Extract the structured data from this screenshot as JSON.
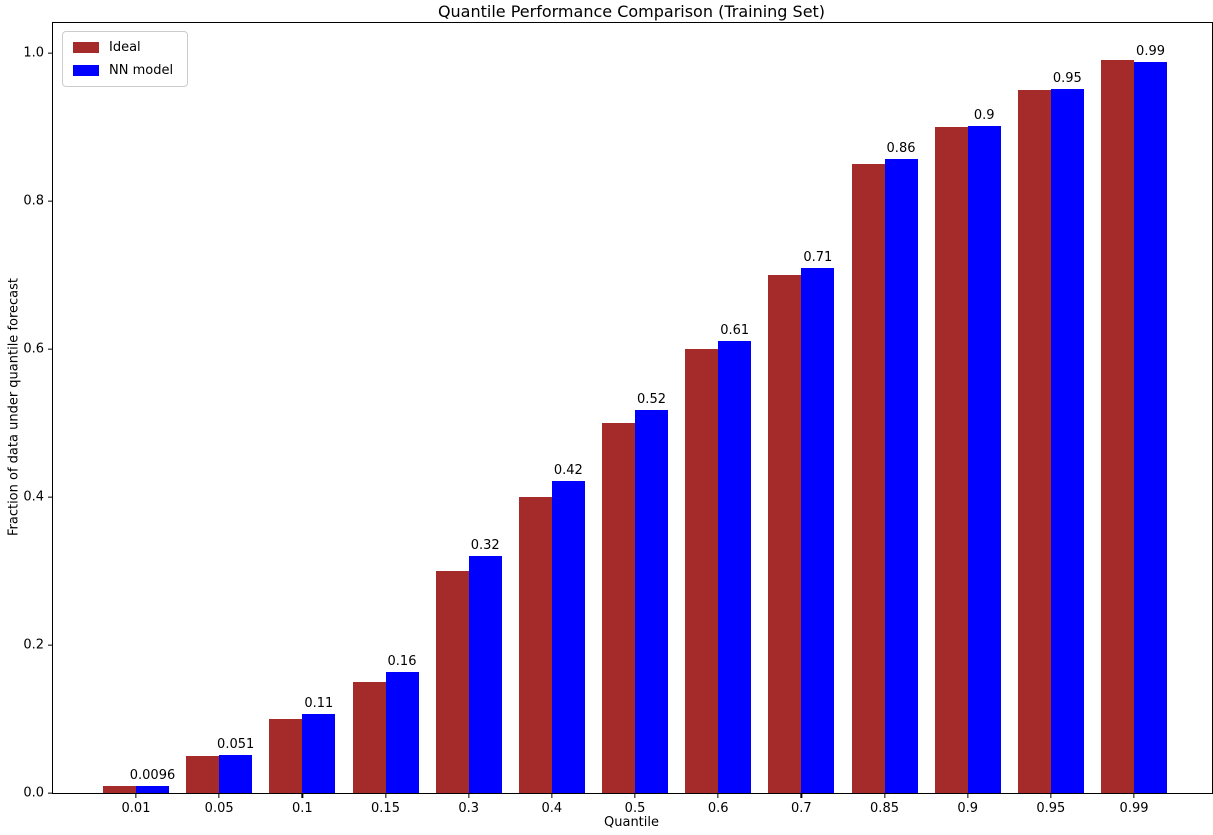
{
  "chart_data": {
    "type": "bar",
    "title": "Quantile Performance Comparison (Training Set)",
    "xlabel": "Quantile",
    "ylabel": "Fraction of data under quantile forecast",
    "categories": [
      "0.01",
      "0.05",
      "0.1",
      "0.15",
      "0.3",
      "0.4",
      "0.5",
      "0.6",
      "0.7",
      "0.85",
      "0.9",
      "0.95",
      "0.99"
    ],
    "series": [
      {
        "name": "Ideal",
        "color": "#a52a2a",
        "values": [
          0.01,
          0.05,
          0.1,
          0.15,
          0.3,
          0.4,
          0.5,
          0.6,
          0.7,
          0.85,
          0.9,
          0.95,
          0.99
        ]
      },
      {
        "name": "NN model",
        "color": "#0000ff",
        "values": [
          0.0096,
          0.051,
          0.107,
          0.163,
          0.32,
          0.422,
          0.517,
          0.611,
          0.71,
          0.857,
          0.902,
          0.951,
          0.988
        ],
        "labels": [
          "0.0096",
          "0.051",
          "0.11",
          "0.16",
          "0.32",
          "0.42",
          "0.52",
          "0.61",
          "0.71",
          "0.86",
          "0.9",
          "0.95",
          "0.99"
        ]
      }
    ],
    "yticks": [
      "0.0",
      "0.2",
      "0.4",
      "0.6",
      "0.8",
      "1.0"
    ],
    "ylim": [
      0,
      1.0405
    ],
    "grid": false,
    "legend_position": "upper left",
    "background_color": "#ffffff",
    "spine_color": "#000000"
  }
}
